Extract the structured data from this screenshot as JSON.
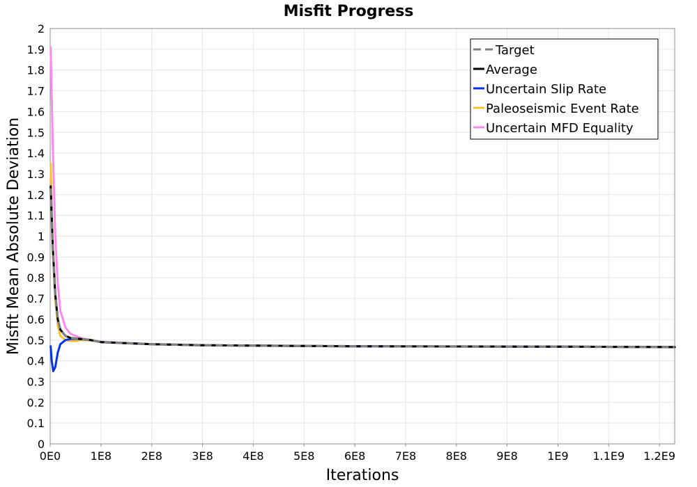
{
  "chart_data": {
    "type": "line",
    "title": "Misfit Progress",
    "xlabel": "Iterations",
    "ylabel": "Misfit Mean Absolute Deviation",
    "xlim": [
      0,
      1230000000
    ],
    "ylim": [
      0,
      2
    ],
    "grid": true,
    "legend_position": "top-right",
    "x_ticks": [
      0,
      100000000,
      200000000,
      300000000,
      400000000,
      500000000,
      600000000,
      700000000,
      800000000,
      900000000,
      1000000000,
      1100000000,
      1200000000
    ],
    "x_tick_labels": [
      "0E0",
      "1E8",
      "2E8",
      "3E8",
      "4E8",
      "5E8",
      "6E8",
      "7E8",
      "8E8",
      "9E8",
      "1E9",
      "1.1E9",
      "1.2E9"
    ],
    "y_ticks": [
      0,
      0.1,
      0.2,
      0.3,
      0.4,
      0.5,
      0.6,
      0.7,
      0.8,
      0.9,
      1,
      1.1,
      1.2,
      1.3,
      1.4,
      1.5,
      1.6,
      1.7,
      1.8,
      1.9,
      2
    ],
    "y_tick_labels": [
      "0",
      "0.1",
      "0.2",
      "0.3",
      "0.4",
      "0.5",
      "0.6",
      "0.7",
      "0.8",
      "0.9",
      "1",
      "1.1",
      "1.2",
      "1.3",
      "1.4",
      "1.5",
      "1.6",
      "1.7",
      "1.8",
      "1.9",
      "2"
    ],
    "series": [
      {
        "name": "Target",
        "color": "#808080",
        "dash": true,
        "x": [
          1000000,
          5000000,
          10000000,
          15000000,
          20000000,
          30000000,
          40000000,
          60000000,
          80000000,
          100000000,
          150000000,
          200000000,
          300000000,
          400000000,
          600000000,
          800000000,
          1000000000,
          1230000000
        ],
        "y": [
          1.23,
          0.95,
          0.72,
          0.6,
          0.55,
          0.52,
          0.51,
          0.505,
          0.5,
          0.49,
          0.485,
          0.48,
          0.475,
          0.473,
          0.47,
          0.469,
          0.468,
          0.466
        ]
      },
      {
        "name": "Average",
        "color": "#000000",
        "dash": false,
        "x": [
          1000000,
          5000000,
          10000000,
          15000000,
          20000000,
          30000000,
          40000000,
          60000000,
          80000000,
          100000000,
          150000000,
          200000000,
          300000000,
          400000000,
          600000000,
          800000000,
          1000000000,
          1230000000
        ],
        "y": [
          1.24,
          0.96,
          0.72,
          0.6,
          0.55,
          0.52,
          0.51,
          0.505,
          0.5,
          0.49,
          0.485,
          0.48,
          0.475,
          0.473,
          0.47,
          0.469,
          0.468,
          0.466
        ]
      },
      {
        "name": "Uncertain Slip Rate",
        "color": "#0033ee",
        "dash": false,
        "x": [
          1000000,
          3000000,
          6000000,
          10000000,
          15000000,
          20000000,
          30000000,
          40000000,
          60000000,
          80000000,
          100000000,
          150000000,
          200000000,
          300000000,
          400000000,
          600000000,
          800000000,
          1000000000,
          1230000000
        ],
        "y": [
          0.47,
          0.4,
          0.35,
          0.37,
          0.44,
          0.48,
          0.5,
          0.505,
          0.505,
          0.5,
          0.49,
          0.485,
          0.48,
          0.475,
          0.473,
          0.47,
          0.469,
          0.468,
          0.466
        ]
      },
      {
        "name": "Paleoseismic Event Rate",
        "color": "#f5c232",
        "dash": false,
        "x": [
          1000000,
          5000000,
          10000000,
          15000000,
          20000000,
          30000000,
          40000000,
          50000000,
          60000000,
          80000000,
          100000000,
          150000000,
          200000000,
          300000000,
          400000000,
          600000000,
          800000000,
          1000000000,
          1230000000
        ],
        "y": [
          1.35,
          0.95,
          0.7,
          0.57,
          0.52,
          0.5,
          0.495,
          0.495,
          0.5,
          0.498,
          0.49,
          0.485,
          0.48,
          0.475,
          0.473,
          0.47,
          0.469,
          0.468,
          0.466
        ]
      },
      {
        "name": "Uncertain MFD Equality",
        "color": "#ff88ee",
        "dash": false,
        "x": [
          1000000,
          5000000,
          10000000,
          15000000,
          20000000,
          30000000,
          40000000,
          50000000,
          60000000,
          80000000,
          100000000,
          150000000,
          200000000,
          300000000,
          400000000,
          600000000,
          800000000,
          1000000000,
          1230000000
        ],
        "y": [
          1.91,
          1.45,
          1.0,
          0.77,
          0.64,
          0.56,
          0.53,
          0.52,
          0.51,
          0.5,
          0.492,
          0.485,
          0.48,
          0.475,
          0.473,
          0.47,
          0.469,
          0.468,
          0.466
        ]
      }
    ]
  }
}
